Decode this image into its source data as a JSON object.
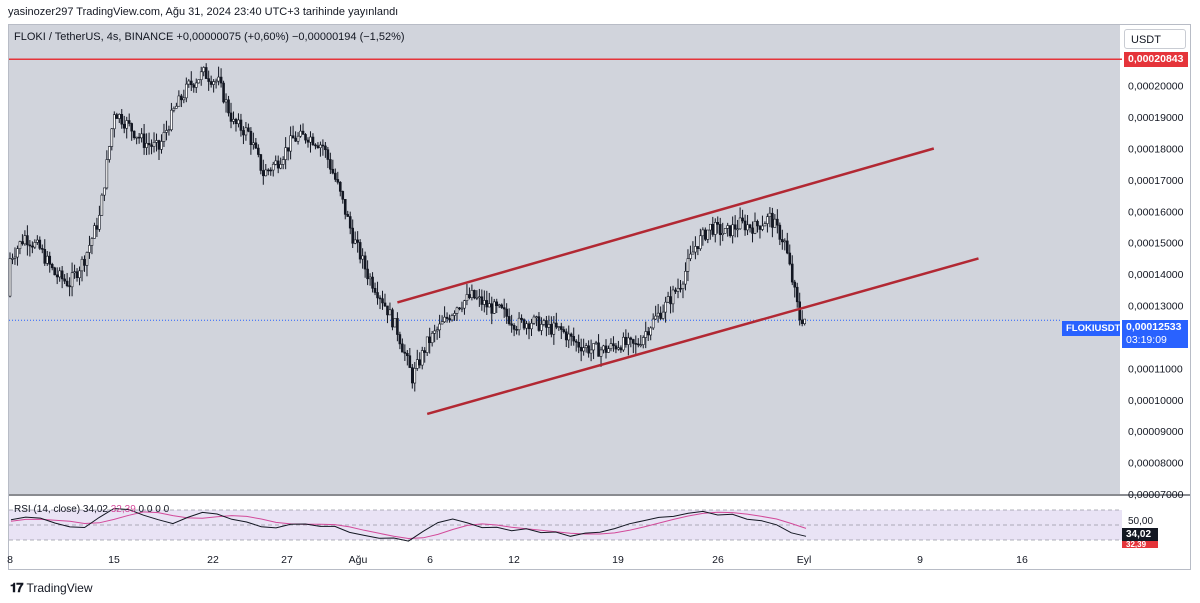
{
  "header": {
    "publisher": "yasinozer297 TradingView.com, Ağu 31, 2024 23:40 UTC+3 tarihinde yayınlandı"
  },
  "symbol_line": "FLOKI / TetherUS, 4s, BINANCE  +0,00000075 (+0,60%)  −0,00000194 (−1,52%)",
  "currency_button": "USDT",
  "price_axis": {
    "labels": [
      "0,00020000",
      "0,00019000",
      "0,00018000",
      "0,00017000",
      "0,00016000",
      "0,00015000",
      "0,00014000",
      "0,00013000",
      "0,00011000",
      "0,00010000",
      "0,00009000",
      "0,00008000",
      "0,00007000"
    ]
  },
  "resistance_tag": {
    "text": "0,00020843",
    "color": "#e5343a"
  },
  "last_price_tag": {
    "symbol": "FLOKIUSDT",
    "price": "0,00012533",
    "countdown": "03:19:09",
    "color": "#2962ff"
  },
  "rsi": {
    "label": "RSI (14, close)",
    "value": "34,02",
    "ma_value": "32,39",
    "extra": "0  0  0  0",
    "level_label": "50,00",
    "value_tag": "34,02",
    "ma_tag": "32,39"
  },
  "time_axis": {
    "labels": [
      "8",
      "15",
      "22",
      "27",
      "Ağu",
      "6",
      "12",
      "19",
      "26",
      "Eyl",
      "9",
      "16"
    ]
  },
  "footer": {
    "brand": "TradingView"
  },
  "chart_data": {
    "type": "candlestick",
    "symbol": "FLOKI / TetherUS",
    "interval": "4s",
    "ylim": [
      7e-05,
      0.000212
    ],
    "close_path": [
      {
        "t": "Tem 7",
        "v": 0.000133
      },
      {
        "t": "Tem 8",
        "v": 0.000145
      },
      {
        "t": "Tem 9",
        "v": 0.000152
      },
      {
        "t": "Tem 10",
        "v": 0.000148
      },
      {
        "t": "Tem 11",
        "v": 0.00014
      },
      {
        "t": "Tem 12",
        "v": 0.000137
      },
      {
        "t": "Tem 13",
        "v": 0.000145
      },
      {
        "t": "Tem 14",
        "v": 0.000158
      },
      {
        "t": "Tem 15",
        "v": 0.000192
      },
      {
        "t": "Tem 16",
        "v": 0.000187
      },
      {
        "t": "Tem 17",
        "v": 0.000182
      },
      {
        "t": "Tem 18",
        "v": 0.00018
      },
      {
        "t": "Tem 19",
        "v": 0.000192
      },
      {
        "t": "Tem 20",
        "v": 0.0002
      },
      {
        "t": "Tem 21",
        "v": 0.000204
      },
      {
        "t": "Tem 22",
        "v": 0.000201
      },
      {
        "t": "Tem 23",
        "v": 0.000188
      },
      {
        "t": "Tem 24",
        "v": 0.000185
      },
      {
        "t": "Tem 25",
        "v": 0.000172
      },
      {
        "t": "Tem 26",
        "v": 0.000176
      },
      {
        "t": "Tem 27",
        "v": 0.000183
      },
      {
        "t": "Tem 28",
        "v": 0.000184
      },
      {
        "t": "Tem 29",
        "v": 0.000181
      },
      {
        "t": "Tem 30",
        "v": 0.000168
      },
      {
        "t": "Tem 31",
        "v": 0.000152
      },
      {
        "t": "Ağu 1",
        "v": 0.00014
      },
      {
        "t": "Ağu 2",
        "v": 0.000132
      },
      {
        "t": "Ağu 3",
        "v": 0.000122
      },
      {
        "t": "Ağu 4",
        "v": 0.000107
      },
      {
        "t": "Ağu 5",
        "v": 0.000118
      },
      {
        "t": "Ağu 6",
        "v": 0.000124
      },
      {
        "t": "Ağu 7",
        "v": 0.00013
      },
      {
        "t": "Ağu 8",
        "v": 0.000133
      },
      {
        "t": "Ağu 9",
        "v": 0.00013
      },
      {
        "t": "Ağu 10",
        "v": 0.000128
      },
      {
        "t": "Ağu 11",
        "v": 0.000124
      },
      {
        "t": "Ağu 12",
        "v": 0.000125
      },
      {
        "t": "Ağu 13",
        "v": 0.000123
      },
      {
        "t": "Ağu 14",
        "v": 0.000122
      },
      {
        "t": "Ağu 15",
        "v": 0.000118
      },
      {
        "t": "Ağu 16",
        "v": 0.000116
      },
      {
        "t": "Ağu 17",
        "v": 0.000116
      },
      {
        "t": "Ağu 18",
        "v": 0.000118
      },
      {
        "t": "Ağu 19",
        "v": 0.000117
      },
      {
        "t": "Ağu 20",
        "v": 0.000124
      },
      {
        "t": "Ağu 21",
        "v": 0.00013
      },
      {
        "t": "Ağu 22",
        "v": 0.000137
      },
      {
        "t": "Ağu 23",
        "v": 0.000149
      },
      {
        "t": "Ağu 24",
        "v": 0.000155
      },
      {
        "t": "Ağu 25",
        "v": 0.000153
      },
      {
        "t": "Ağu 26",
        "v": 0.000156
      },
      {
        "t": "Ağu 27",
        "v": 0.000155
      },
      {
        "t": "Ağu 28",
        "v": 0.000158
      },
      {
        "t": "Ağu 29",
        "v": 0.00015
      },
      {
        "t": "Ağu 30",
        "v": 0.000126
      },
      {
        "t": "Ağu 31",
        "v": 0.0001253
      }
    ],
    "horizontal_line": 0.00020843,
    "last_price": 0.00012533,
    "trendlines": [
      {
        "name": "upper-channel",
        "from": {
          "t": "Ağu 3",
          "v": 0.000131
        },
        "to": {
          "t": "Eyl 8",
          "v": 0.00018
        }
      },
      {
        "name": "lower-channel",
        "from": {
          "t": "Ağu 5",
          "v": 9.55e-05
        },
        "to": {
          "t": "Eyl 11",
          "v": 0.000145
        }
      }
    ],
    "rsi_series": [
      55,
      60,
      58,
      52,
      50,
      48,
      62,
      70,
      72,
      66,
      58,
      54,
      60,
      64,
      66,
      60,
      56,
      50,
      48,
      52,
      54,
      50,
      46,
      40,
      36,
      34,
      30,
      28,
      40,
      52,
      56,
      50,
      48,
      46,
      44,
      42,
      40,
      38,
      36,
      38,
      40,
      44,
      50,
      56,
      60,
      64,
      68,
      70,
      66,
      62,
      60,
      58,
      52,
      38,
      34
    ]
  }
}
